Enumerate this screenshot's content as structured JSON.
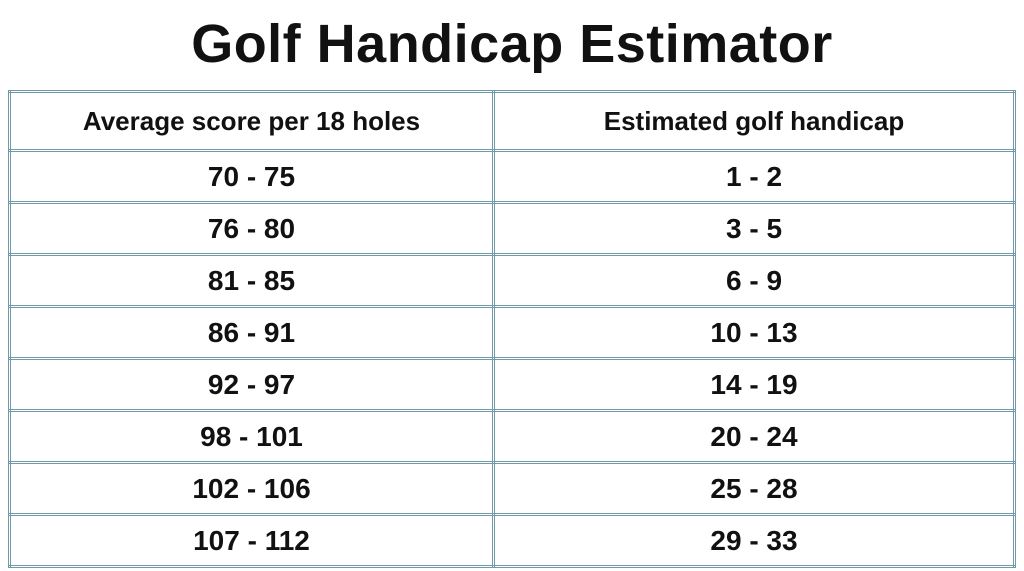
{
  "title": "Golf Handicap Estimator",
  "table": {
    "headers": [
      "Average score per 18 holes",
      "Estimated golf handicap"
    ],
    "rows": [
      [
        "70 - 75",
        "1 - 2"
      ],
      [
        "76 - 80",
        "3 - 5"
      ],
      [
        "81 - 85",
        "6 - 9"
      ],
      [
        "86 - 91",
        "10 - 13"
      ],
      [
        "92 - 97",
        "14 - 19"
      ],
      [
        "98 - 101",
        "20 - 24"
      ],
      [
        "102 - 106",
        "25 - 28"
      ],
      [
        "107 - 112",
        "29 - 33"
      ]
    ]
  }
}
